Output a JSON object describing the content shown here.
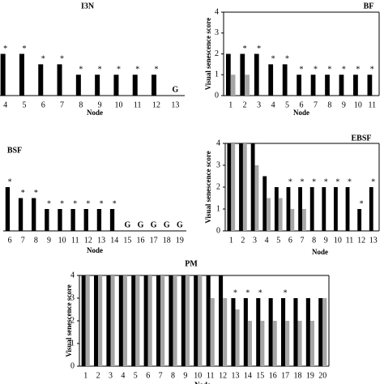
{
  "chart_data": [
    {
      "type": "bar",
      "title": "I3N",
      "x_label": "Node",
      "categories": [
        "4",
        "5",
        "6",
        "7",
        "8",
        "9",
        "10",
        "11",
        "12",
        "13"
      ],
      "series": [
        {
          "color": "#000000",
          "values": [
            2,
            2,
            1.5,
            1.5,
            1,
            1,
            1,
            1,
            1,
            null
          ]
        },
        {
          "color": "#a6a6a6",
          "values": [
            null,
            null,
            null,
            null,
            null,
            null,
            null,
            null,
            null,
            null
          ]
        }
      ],
      "bar_labels": [
        "*",
        "*",
        "*",
        "*",
        "*",
        "*",
        "*",
        "*",
        "*",
        "G"
      ],
      "ylim": [
        0,
        4
      ]
    },
    {
      "type": "bar",
      "title": "BF",
      "x_label": "Node",
      "y_label": "Visual senescence score",
      "categories": [
        "1",
        "2",
        "3",
        "4",
        "5",
        "6",
        "7",
        "8",
        "9",
        "10",
        "11"
      ],
      "series": [
        {
          "color": "#000000",
          "values": [
            2,
            2,
            2,
            1.5,
            1.5,
            1,
            1,
            1,
            1,
            1,
            1
          ]
        },
        {
          "color": "#a6a6a6",
          "values": [
            1,
            1,
            null,
            null,
            null,
            null,
            null,
            null,
            null,
            null,
            null
          ]
        }
      ],
      "bar_labels": [
        null,
        "*",
        "*",
        "*",
        "*",
        "*",
        "*",
        "*",
        "*",
        "*",
        "*"
      ],
      "ylim": [
        0,
        4
      ],
      "yticks": [
        0,
        1,
        2,
        3,
        4
      ]
    },
    {
      "type": "bar",
      "title": "BSF",
      "x_label": "Node",
      "categories": [
        "6",
        "7",
        "8",
        "9",
        "10",
        "11",
        "12",
        "13",
        "14",
        "15",
        "16",
        "17",
        "18",
        "19"
      ],
      "series": [
        {
          "color": "#000000",
          "values": [
            2,
            1.5,
            1.5,
            1,
            1,
            1,
            1,
            1,
            1,
            null,
            null,
            null,
            null,
            null
          ]
        },
        {
          "color": "#a6a6a6",
          "values": [
            null,
            null,
            null,
            null,
            null,
            null,
            null,
            null,
            null,
            null,
            null,
            null,
            null,
            null
          ]
        }
      ],
      "bar_labels": [
        "*",
        "*",
        "*",
        "*",
        "*",
        "*",
        "*",
        "*",
        "*",
        "G",
        "G",
        "G",
        "G",
        "G"
      ],
      "ylim": [
        0,
        4
      ]
    },
    {
      "type": "bar",
      "title": "EBSF",
      "x_label": "Node",
      "y_label": "Visual senescence score",
      "categories": [
        "1",
        "2",
        "3",
        "4",
        "5",
        "6",
        "7",
        "8",
        "9",
        "10",
        "11",
        "12",
        "13"
      ],
      "series": [
        {
          "color": "#000000",
          "values": [
            4,
            4,
            4,
            2.5,
            2,
            2,
            2,
            2,
            2,
            2,
            2,
            1,
            2
          ]
        },
        {
          "color": "#a6a6a6",
          "values": [
            4,
            4,
            3,
            1.5,
            1.5,
            1,
            1,
            null,
            null,
            null,
            null,
            null,
            null
          ]
        }
      ],
      "bar_labels": [
        null,
        null,
        null,
        null,
        null,
        "*",
        "*",
        "*",
        "*",
        "*",
        "*",
        "*",
        "*"
      ],
      "ylim": [
        0,
        4
      ],
      "yticks": [
        0,
        1,
        2,
        3,
        4
      ]
    },
    {
      "type": "bar",
      "title": "PM",
      "x_label": "Node",
      "y_label": "Visual senescence score",
      "categories": [
        "1",
        "2",
        "3",
        "4",
        "5",
        "6",
        "7",
        "8",
        "9",
        "10",
        "11",
        "12",
        "13",
        "14",
        "15",
        "16",
        "17",
        "18",
        "19",
        "20"
      ],
      "series": [
        {
          "color": "#000000",
          "values": [
            4,
            4,
            4,
            4,
            4,
            4,
            4,
            4,
            4,
            4,
            4,
            4,
            3,
            3,
            3,
            3,
            3,
            3,
            3,
            3
          ]
        },
        {
          "color": "#a6a6a6",
          "values": [
            4,
            4,
            4,
            4,
            4,
            4,
            4,
            4,
            4,
            4,
            3,
            3,
            2.5,
            2,
            2,
            2,
            2,
            2,
            2,
            3
          ]
        }
      ],
      "bar_labels": [
        null,
        null,
        null,
        null,
        null,
        null,
        null,
        null,
        null,
        null,
        null,
        null,
        "*",
        "*",
        "*",
        null,
        "*",
        null,
        null,
        null
      ],
      "ylim": [
        0,
        4
      ],
      "yticks": [
        0,
        1,
        2,
        3,
        4
      ]
    }
  ]
}
